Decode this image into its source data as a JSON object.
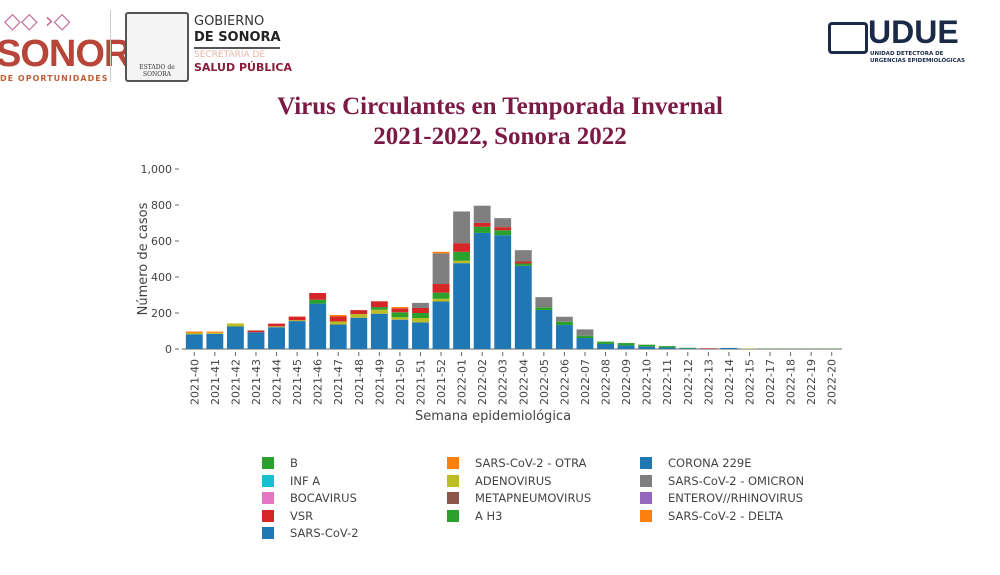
{
  "header": {
    "left_logo_text": "SONORA",
    "left_logo_subtext": "DE OPORTUNIDADES",
    "shield_caption": "ESTADO de SONORA",
    "gov_line1": "GOBIERNO",
    "gov_line2": "DE SONORA",
    "sec_line1": "SECRETARÍA DE",
    "sec_line2": "SALUD PÚBLICA",
    "udue_text": "UDUE",
    "udue_sub1": "UNIDAD DETECTORA DE",
    "udue_sub2": "URGENCIAS EPIDEMIOLÓGICAS"
  },
  "chart_data": {
    "type": "bar",
    "stacked": true,
    "title": "Virus Circulantes en Temporada Invernal",
    "subtitle": "2021-2022, Sonora 2022",
    "xlabel": "Semana epidemiológica",
    "ylabel": "Número de casos",
    "ylim": [
      0,
      1000
    ],
    "yticks": [
      "0",
      "200",
      "400",
      "600",
      "800",
      "1,000"
    ],
    "ytick_values": [
      0,
      200,
      400,
      600,
      800,
      1000
    ],
    "grid": false,
    "legend_placement": "bottom",
    "categories": [
      "2021-40",
      "2021-41",
      "2021-42",
      "2021-43",
      "2021-44",
      "2021-45",
      "2021-46",
      "2021-47",
      "2021-48",
      "2021-49",
      "2021-50",
      "2021-51",
      "2021-52",
      "2022-01",
      "2022-02",
      "2022-03",
      "2022-04",
      "2022-05",
      "2022-06",
      "2022-07",
      "2022-08",
      "2022-09",
      "2022-10",
      "2022-11",
      "2022-12",
      "2022-13",
      "2022-14",
      "2022-15",
      "2022-17",
      "2022-18",
      "2022-19",
      "2022-20"
    ],
    "series": [
      {
        "name": "SARS-CoV-2",
        "color": "#1f77b4",
        "values": [
          82,
          84,
          125,
          93,
          121,
          155,
          252,
          136,
          174,
          196,
          163,
          148,
          264,
          477,
          645,
          632,
          462,
          217,
          133,
          61,
          28,
          20,
          13,
          8,
          4,
          1,
          6,
          0,
          0,
          0,
          0,
          0
        ]
      },
      {
        "name": "ADENOVIRUS",
        "color": "#bcbd22",
        "values": [
          7,
          6,
          17,
          0,
          5,
          5,
          0,
          17,
          20,
          22,
          13,
          24,
          15,
          13,
          0,
          0,
          0,
          0,
          0,
          0,
          0,
          0,
          0,
          0,
          0,
          0,
          0,
          2,
          0,
          0,
          0,
          0
        ]
      },
      {
        "name": "A H3",
        "color": "#2ca02c",
        "values": [
          0,
          0,
          0,
          0,
          0,
          0,
          22,
          0,
          0,
          15,
          28,
          28,
          34,
          50,
          34,
          28,
          13,
          15,
          18,
          13,
          13,
          13,
          11,
          8,
          3,
          0,
          0,
          0,
          2,
          2,
          2,
          2
        ]
      },
      {
        "name": "VSR",
        "color": "#d62728",
        "values": [
          0,
          0,
          0,
          10,
          15,
          20,
          37,
          28,
          22,
          32,
          22,
          28,
          48,
          48,
          22,
          17,
          11,
          0,
          0,
          0,
          0,
          0,
          0,
          0,
          0,
          3,
          0,
          0,
          0,
          0,
          0,
          0
        ]
      },
      {
        "name": "SARS-CoV-2 - OMICRON",
        "color": "#7f7f7f",
        "values": [
          0,
          0,
          0,
          0,
          0,
          0,
          0,
          0,
          0,
          0,
          0,
          28,
          170,
          176,
          95,
          50,
          63,
          56,
          28,
          35,
          0,
          0,
          0,
          0,
          0,
          0,
          0,
          0,
          0,
          0,
          0,
          0
        ]
      },
      {
        "name": "SARS-CoV-2 - OTRA",
        "color": "#ff7f0e",
        "values": [
          8,
          7,
          0,
          0,
          0,
          0,
          0,
          8,
          0,
          0,
          7,
          0,
          9,
          0,
          0,
          0,
          0,
          0,
          0,
          0,
          0,
          0,
          0,
          0,
          0,
          0,
          0,
          0,
          0,
          0,
          0,
          0
        ]
      }
    ],
    "legend": [
      {
        "name": "B",
        "color": "#2ca02c"
      },
      {
        "name": "INF A",
        "color": "#17becf"
      },
      {
        "name": "BOCAVIRUS",
        "color": "#e377c2"
      },
      {
        "name": "VSR",
        "color": "#d62728"
      },
      {
        "name": "SARS-CoV-2",
        "color": "#1f77b4"
      },
      {
        "name": "SARS-CoV-2 - OTRA",
        "color": "#ff7f0e"
      },
      {
        "name": "ADENOVIRUS",
        "color": "#bcbd22"
      },
      {
        "name": "METAPNEUMOVIRUS",
        "color": "#8c564b"
      },
      {
        "name": "A H3",
        "color": "#2ca02c"
      },
      {
        "name": "CORONA 229E",
        "color": "#1f77b4"
      },
      {
        "name": "SARS-CoV-2 - OMICRON",
        "color": "#7f7f7f"
      },
      {
        "name": "ENTEROV//RHINOVIRUS",
        "color": "#9467bd"
      },
      {
        "name": "SARS-CoV-2 - DELTA",
        "color": "#ff7f0e"
      }
    ]
  }
}
